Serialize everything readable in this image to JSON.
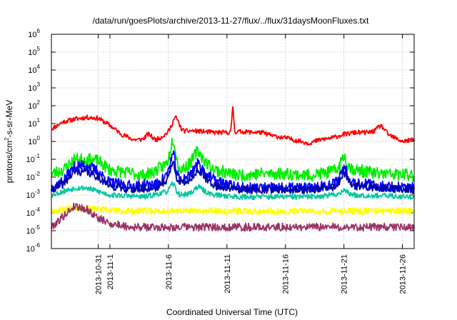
{
  "chart_data": {
    "type": "line",
    "title": "/data/run/goesPlots/archive/2013-11-27/flux/../flux/31daysMoonFluxes.txt",
    "xlabel": "Coordinated Universal Time (UTC)",
    "ylabel_parts": {
      "prefix": "protons/cm",
      "sup": "2",
      "suffix": "-s-sr-MeV"
    },
    "y_scale": "log",
    "ylim_exp": [
      -6,
      6
    ],
    "y_ticks": [
      {
        "base": "10",
        "exp": "-6"
      },
      {
        "base": "10",
        "exp": "-5"
      },
      {
        "base": "10",
        "exp": "-4"
      },
      {
        "base": "10",
        "exp": "-3"
      },
      {
        "base": "10",
        "exp": "-2"
      },
      {
        "base": "10",
        "exp": "-1"
      },
      {
        "base": "10",
        "exp": "0"
      },
      {
        "base": "10",
        "exp": "1"
      },
      {
        "base": "10",
        "exp": "2"
      },
      {
        "base": "10",
        "exp": "3"
      },
      {
        "base": "10",
        "exp": "4"
      },
      {
        "base": "10",
        "exp": "5"
      },
      {
        "base": "10",
        "exp": "6"
      }
    ],
    "x_range_days": [
      0,
      31
    ],
    "x_ticks": [
      {
        "label": "2013-10-31",
        "day": 4
      },
      {
        "label": "2013-11-1",
        "day": 5
      },
      {
        "label": "2013-11-6",
        "day": 10
      },
      {
        "label": "2013-11-11",
        "day": 15
      },
      {
        "label": "2013-11-16",
        "day": 20
      },
      {
        "label": "2013-11-21",
        "day": 25
      },
      {
        "label": "2013-11-26",
        "day": 30
      }
    ],
    "grid": true,
    "series": [
      {
        "name": "red channel",
        "color": "#ff0000",
        "seed": 11,
        "noise": 0.13,
        "base": [
          [
            0,
            0.7
          ],
          [
            1,
            1.1
          ],
          [
            2,
            1.25
          ],
          [
            3,
            1.35
          ],
          [
            4,
            1.3
          ],
          [
            5,
            0.9
          ],
          [
            6,
            0.4
          ],
          [
            7,
            0.1
          ],
          [
            9,
            0.1
          ],
          [
            10,
            0.5
          ],
          [
            12,
            0.6
          ],
          [
            14,
            0.5
          ],
          [
            15,
            0.5
          ],
          [
            16,
            0.55
          ],
          [
            18,
            0.5
          ],
          [
            19,
            0.3
          ],
          [
            20,
            0.2
          ],
          [
            21,
            0.05
          ],
          [
            22,
            -0.1
          ],
          [
            23,
            0.1
          ],
          [
            24,
            0.2
          ],
          [
            25,
            0.4
          ],
          [
            26,
            0.5
          ],
          [
            27,
            0.5
          ],
          [
            28,
            0.6
          ],
          [
            29,
            0.3
          ],
          [
            30,
            0.0
          ],
          [
            31,
            0.1
          ]
        ],
        "peaks": [
          [
            8.3,
            0.3,
            0.35
          ],
          [
            10.6,
            0.8,
            0.4
          ],
          [
            15.5,
            1.45,
            0.1
          ],
          [
            28.2,
            0.3,
            0.4
          ]
        ]
      },
      {
        "name": "green channel",
        "color": "#00ee00",
        "seed": 23,
        "noise": 0.35,
        "base": [
          [
            0,
            -1.8
          ],
          [
            1,
            -1.6
          ],
          [
            2,
            -1.0
          ],
          [
            3,
            -1.0
          ],
          [
            4,
            -1.1
          ],
          [
            5,
            -1.6
          ],
          [
            7,
            -1.8
          ],
          [
            8,
            -1.9
          ],
          [
            9,
            -1.6
          ],
          [
            10,
            -1.2
          ],
          [
            11,
            -1.6
          ],
          [
            12,
            -1.2
          ],
          [
            13,
            -1.1
          ],
          [
            14,
            -1.6
          ],
          [
            16,
            -1.9
          ],
          [
            18,
            -1.8
          ],
          [
            20,
            -1.8
          ],
          [
            22,
            -1.9
          ],
          [
            24,
            -1.7
          ],
          [
            25,
            -1.3
          ],
          [
            26,
            -1.6
          ],
          [
            28,
            -1.8
          ],
          [
            31,
            -1.9
          ]
        ],
        "peaks": [
          [
            10.4,
            1.5,
            0.3
          ],
          [
            12.5,
            0.6,
            0.4
          ],
          [
            25.0,
            0.5,
            0.3
          ]
        ]
      },
      {
        "name": "blue channel",
        "color": "#0000ff",
        "seed": 37,
        "noise": 0.3,
        "base": [
          [
            0,
            -2.6
          ],
          [
            1,
            -2.2
          ],
          [
            2,
            -1.4
          ],
          [
            3,
            -1.3
          ],
          [
            4,
            -1.7
          ],
          [
            5,
            -2.3
          ],
          [
            7,
            -2.5
          ],
          [
            9,
            -2.4
          ],
          [
            10,
            -1.8
          ],
          [
            11,
            -2.2
          ],
          [
            12,
            -1.8
          ],
          [
            13,
            -1.7
          ],
          [
            14,
            -2.2
          ],
          [
            16,
            -2.6
          ],
          [
            18,
            -2.6
          ],
          [
            20,
            -2.6
          ],
          [
            22,
            -2.6
          ],
          [
            24,
            -2.4
          ],
          [
            25,
            -1.9
          ],
          [
            26,
            -2.3
          ],
          [
            28,
            -2.5
          ],
          [
            31,
            -2.6
          ]
        ],
        "peaks": [
          [
            10.4,
            1.2,
            0.3
          ],
          [
            12.5,
            0.5,
            0.4
          ],
          [
            25.0,
            0.5,
            0.3
          ]
        ]
      },
      {
        "name": "navy channel",
        "color": "#0000aa",
        "seed": 41,
        "noise": 0.22,
        "base": [
          [
            0,
            -2.7
          ],
          [
            1,
            -2.4
          ],
          [
            2,
            -1.7
          ],
          [
            3,
            -1.7
          ],
          [
            4,
            -2.0
          ],
          [
            5,
            -2.5
          ],
          [
            7,
            -2.7
          ],
          [
            9,
            -2.6
          ],
          [
            10,
            -2.1
          ],
          [
            11,
            -2.4
          ],
          [
            12,
            -2.1
          ],
          [
            13,
            -2.0
          ],
          [
            14,
            -2.5
          ],
          [
            16,
            -2.7
          ],
          [
            18,
            -2.7
          ],
          [
            22,
            -2.7
          ],
          [
            24,
            -2.6
          ],
          [
            25,
            -2.2
          ],
          [
            26,
            -2.5
          ],
          [
            28,
            -2.6
          ],
          [
            31,
            -2.7
          ]
        ],
        "peaks": [
          [
            10.4,
            1.0,
            0.3
          ],
          [
            12.5,
            0.4,
            0.4
          ],
          [
            25.0,
            0.4,
            0.3
          ]
        ]
      },
      {
        "name": "teal channel",
        "color": "#00c8a0",
        "seed": 53,
        "noise": 0.15,
        "base": [
          [
            0,
            -3.0
          ],
          [
            1,
            -2.8
          ],
          [
            2,
            -2.6
          ],
          [
            3,
            -2.6
          ],
          [
            4,
            -2.8
          ],
          [
            5,
            -3.0
          ],
          [
            8,
            -3.1
          ],
          [
            10,
            -2.8
          ],
          [
            11,
            -3.0
          ],
          [
            12,
            -2.9
          ],
          [
            13,
            -2.8
          ],
          [
            14,
            -3.0
          ],
          [
            16,
            -3.1
          ],
          [
            22,
            -3.1
          ],
          [
            24,
            -3.0
          ],
          [
            25,
            -2.9
          ],
          [
            26,
            -3.0
          ],
          [
            31,
            -3.1
          ]
        ],
        "peaks": [
          [
            10.4,
            0.5,
            0.3
          ],
          [
            12.5,
            0.3,
            0.4
          ],
          [
            25.0,
            0.2,
            0.3
          ]
        ]
      },
      {
        "name": "yellow channel",
        "color": "#ffff00",
        "seed": 67,
        "noise": 0.18,
        "base": [
          [
            0,
            -3.9
          ],
          [
            1,
            -3.8
          ],
          [
            2,
            -3.7
          ],
          [
            4,
            -3.8
          ],
          [
            6,
            -3.9
          ],
          [
            31,
            -3.9
          ]
        ],
        "peaks": []
      },
      {
        "name": "maroon channel",
        "color": "#993366",
        "seed": 79,
        "noise": 0.22,
        "base": [
          [
            0,
            -4.8
          ],
          [
            1,
            -4.2
          ],
          [
            2,
            -3.6
          ],
          [
            3,
            -3.8
          ],
          [
            4,
            -4.3
          ],
          [
            5,
            -4.6
          ],
          [
            7,
            -4.8
          ],
          [
            31,
            -4.8
          ]
        ],
        "peaks": []
      }
    ]
  }
}
